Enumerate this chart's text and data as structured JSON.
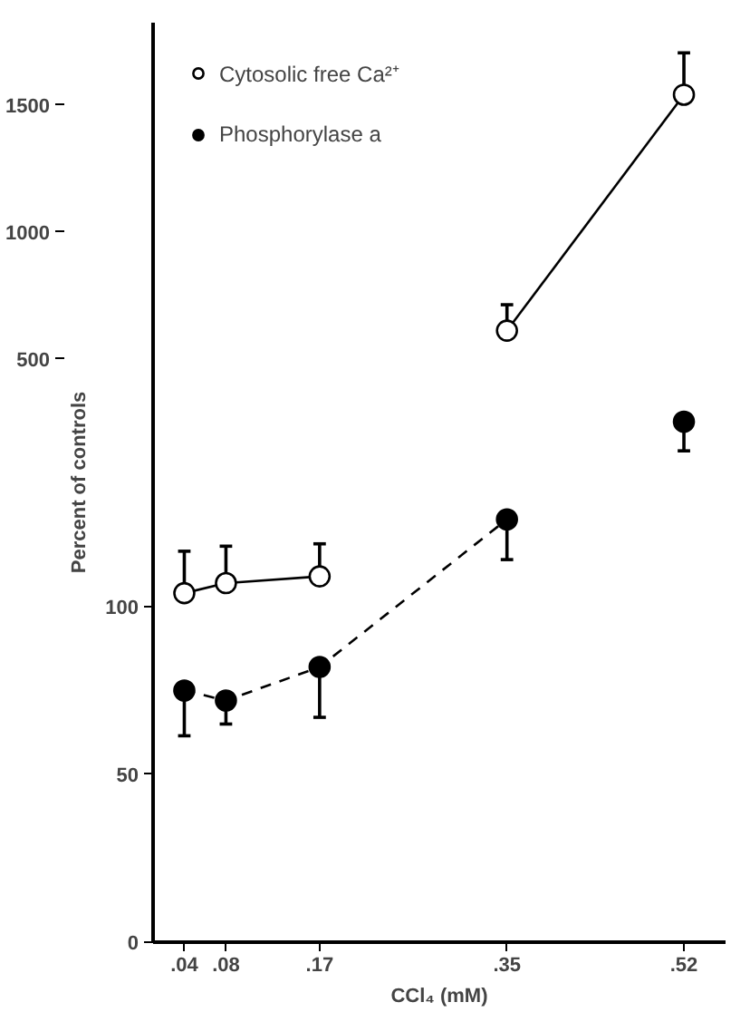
{
  "chart_data": {
    "type": "line",
    "xlim": [
      0.01,
      0.56
    ],
    "ylim": [
      0,
      274
    ],
    "yticks": [
      0,
      50,
      100
    ],
    "y2lim": [
      -1800,
      1825
    ],
    "y2ticks": [
      500,
      1000,
      1500
    ],
    "xticks": [
      {
        "value": 0.04,
        "label": ".04"
      },
      {
        "value": 0.08,
        "label": ".08"
      },
      {
        "value": 0.17,
        "label": ".17"
      },
      {
        "value": 0.35,
        "label": ".35"
      },
      {
        "value": 0.52,
        "label": ".52"
      }
    ],
    "xlabel": "CCl₄ (mM)",
    "ylabel": "Percent of controls",
    "legend": "top left",
    "marker": "circle",
    "series": [
      {
        "name": "Cytosolic free Ca²⁺",
        "color": "#000000",
        "line_style": "solid",
        "axis": "y2",
        "x": [
          0.35,
          0.52
        ],
        "values": [
          611,
          1541
        ],
        "errors": [
          [
            611,
            713
          ],
          [
            1541,
            1706
          ]
        ]
      },
      {
        "name": "Phosphorylase a",
        "color": "#000000",
        "line_style": "dashed",
        "axis": "y2",
        "x": [
          0.52
        ],
        "values": [
          252
        ],
        "errors": [
          [
            137,
            252
          ]
        ]
      },
      {
        "color": "#000000",
        "line_style": "solid",
        "x": [
          0.04,
          0.08,
          0.17
        ],
        "values": [
          104,
          107,
          109
        ],
        "errors": [
          [
            104,
            116.5
          ],
          [
            107,
            118
          ],
          [
            109,
            118.7
          ]
        ]
      },
      {
        "color": "#000000",
        "line_style": "dashed",
        "x": [
          0.04,
          0.08,
          0.17,
          0.35
        ],
        "values": [
          75,
          72,
          82,
          126
        ],
        "errors": [
          [
            61.5,
            75
          ],
          [
            65,
            72
          ],
          [
            67,
            82
          ],
          [
            114,
            126
          ]
        ]
      }
    ]
  }
}
